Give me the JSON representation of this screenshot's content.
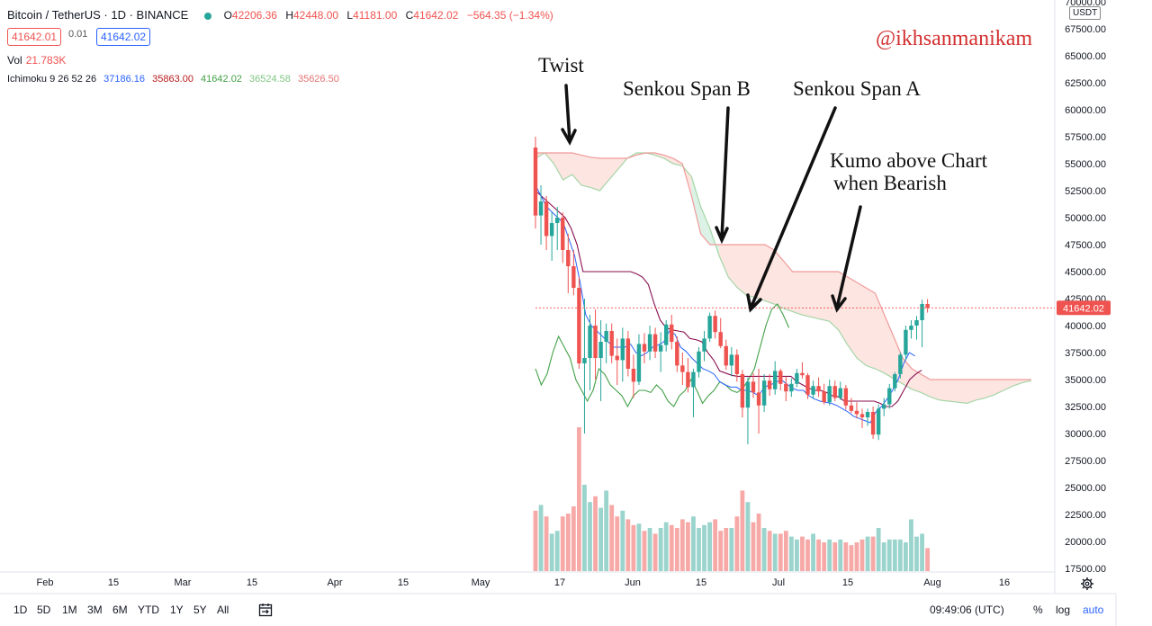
{
  "header": {
    "symbol": "Bitcoin / TetherUS · 1D · BINANCE",
    "ohlc": {
      "o_label": "O",
      "o": "42206.36",
      "h_label": "H",
      "h": "42448.00",
      "l_label": "L",
      "l": "41181.00",
      "c_label": "C",
      "c": "41642.02",
      "change": "−564.35 (−1.34%)"
    },
    "sell_price": "41642.01",
    "spread": "0.01",
    "buy_price": "41642.02",
    "volume_label": "Vol",
    "volume_value": "21.783K",
    "ichimoku_label": "Ichimoku 9 26 52 26",
    "ichimoku_values": [
      "37186.16",
      "35863.00",
      "41642.02",
      "36524.58",
      "35626.50"
    ]
  },
  "currency": "USDT",
  "credit": "@ikhsanmanikam",
  "annotations": {
    "twist": "Twist",
    "span_b": "Senkou Span B",
    "span_a": "Senkou Span A",
    "kumo_line1": "Kumo above Chart",
    "kumo_line2": "when Bearish"
  },
  "colors": {
    "up": "#26a69a",
    "down": "#ef5350",
    "tenkan": "#2962ff",
    "kijun": "#880e4f",
    "chikou": "#43a047",
    "span_a": "#a5d6a7",
    "span_b": "#ef9a9a",
    "cloud_bear": "#fde0dc",
    "cloud_bull": "#d7f0e2"
  },
  "bottom_bar": {
    "timeframes": [
      "1D",
      "5D",
      "1M",
      "3M",
      "6M",
      "YTD",
      "1Y",
      "5Y",
      "All"
    ],
    "time": "09:49:06 (UTC)",
    "percent": "%",
    "log": "log",
    "auto": "auto"
  },
  "chart_data": {
    "type": "candlestick",
    "last_price": 41642.02,
    "last_price_label": "41642.02",
    "y_ticks": [
      "70000.00",
      "67500.00",
      "65000.00",
      "62500.00",
      "60000.00",
      "57500.00",
      "55000.00",
      "52500.00",
      "50000.00",
      "47500.00",
      "45000.00",
      "42500.00",
      "40000.00",
      "37500.00",
      "35000.00",
      "32500.00",
      "30000.00",
      "27500.00",
      "25000.00",
      "22500.00",
      "20000.00",
      "17500.00"
    ],
    "ylim": [
      17000,
      70000
    ],
    "x_ticks": [
      "Feb",
      "15",
      "Mar",
      "15",
      "Apr",
      "15",
      "May",
      "17",
      "Jun",
      "15",
      "Jul",
      "15",
      "Aug",
      "16"
    ],
    "candles": [
      [
        56500,
        57500,
        49000,
        50200
      ],
      [
        50200,
        53000,
        47500,
        51500
      ],
      [
        51500,
        52000,
        47000,
        48300
      ],
      [
        48300,
        50500,
        46000,
        49500
      ],
      [
        49500,
        51000,
        47000,
        50000
      ],
      [
        50000,
        50500,
        45800,
        47000
      ],
      [
        47000,
        48500,
        43000,
        45500
      ],
      [
        45500,
        47000,
        42800,
        43500
      ],
      [
        43500,
        44500,
        36000,
        36500
      ],
      [
        36500,
        42500,
        30000,
        37000
      ],
      [
        37000,
        41000,
        34000,
        40000
      ],
      [
        40000,
        41500,
        35000,
        37000
      ],
      [
        37000,
        40500,
        33000,
        38500
      ],
      [
        38500,
        40200,
        36500,
        39500
      ],
      [
        39500,
        40200,
        36500,
        37200
      ],
      [
        37200,
        38800,
        34500,
        36800
      ],
      [
        36800,
        39800,
        34800,
        38800
      ],
      [
        38800,
        39500,
        35300,
        36000
      ],
      [
        36000,
        37300,
        33300,
        34800
      ],
      [
        34800,
        39200,
        34500,
        38300
      ],
      [
        38300,
        39300,
        36500,
        37600
      ],
      [
        37600,
        40000,
        36800,
        39200
      ],
      [
        39200,
        39800,
        37000,
        37600
      ],
      [
        37600,
        39400,
        35700,
        38200
      ],
      [
        38200,
        40500,
        37600,
        40100
      ],
      [
        40100,
        41000,
        37800,
        38500
      ],
      [
        38500,
        39000,
        35700,
        36300
      ],
      [
        36300,
        37500,
        34500,
        35700
      ],
      [
        35700,
        37000,
        33800,
        34300
      ],
      [
        34300,
        36000,
        31500,
        35700
      ],
      [
        35700,
        38000,
        35200,
        37600
      ],
      [
        37600,
        39500,
        36700,
        38800
      ],
      [
        38800,
        41200,
        38500,
        40900
      ],
      [
        40900,
        41400,
        38800,
        39400
      ],
      [
        39400,
        40700,
        37900,
        38100
      ],
      [
        38100,
        38700,
        35900,
        36300
      ],
      [
        36300,
        38000,
        35300,
        37300
      ],
      [
        37300,
        37800,
        34800,
        35500
      ],
      [
        35500,
        35900,
        31500,
        32400
      ],
      [
        32400,
        35200,
        29000,
        34800
      ],
      [
        34800,
        35600,
        33300,
        33800
      ],
      [
        33800,
        36000,
        30000,
        32600
      ],
      [
        32600,
        35500,
        32000,
        34900
      ],
      [
        34900,
        35500,
        33500,
        34100
      ],
      [
        34100,
        36700,
        33600,
        35800
      ],
      [
        35800,
        36000,
        34000,
        34600
      ],
      [
        34600,
        35300,
        33000,
        33900
      ],
      [
        33900,
        35100,
        33400,
        34600
      ],
      [
        34600,
        36000,
        34300,
        35600
      ],
      [
        35600,
        36600,
        35100,
        35400
      ],
      [
        35400,
        35600,
        33200,
        33600
      ],
      [
        33600,
        34900,
        33200,
        34400
      ],
      [
        34400,
        35200,
        33400,
        33900
      ],
      [
        33900,
        34600,
        32700,
        32900
      ],
      [
        32900,
        35000,
        32600,
        34400
      ],
      [
        34400,
        34900,
        33000,
        33300
      ],
      [
        33300,
        34800,
        33100,
        34200
      ],
      [
        34200,
        34500,
        32200,
        32600
      ],
      [
        32600,
        33300,
        31900,
        32100
      ],
      [
        32100,
        32900,
        31400,
        31800
      ],
      [
        31800,
        32300,
        30500,
        31500
      ],
      [
        31500,
        32300,
        30700,
        32000
      ],
      [
        32000,
        32500,
        29500,
        29900
      ],
      [
        29900,
        32700,
        29400,
        32300
      ],
      [
        32300,
        33300,
        31600,
        32700
      ],
      [
        32700,
        34600,
        32300,
        34200
      ],
      [
        34200,
        35700,
        33900,
        35500
      ],
      [
        35500,
        37500,
        35100,
        37300
      ],
      [
        37300,
        40000,
        36800,
        39600
      ],
      [
        39600,
        40500,
        38800,
        40000
      ],
      [
        40000,
        40900,
        38700,
        40500
      ],
      [
        40500,
        42400,
        38000,
        42000
      ],
      [
        42000,
        42450,
        41200,
        41642
      ]
    ],
    "volumes": [
      0.42,
      0.46,
      0.38,
      0.26,
      0.28,
      0.38,
      0.4,
      0.45,
      1.0,
      0.6,
      0.48,
      0.52,
      0.44,
      0.56,
      0.46,
      0.38,
      0.42,
      0.36,
      0.32,
      0.33,
      0.28,
      0.3,
      0.26,
      0.3,
      0.34,
      0.32,
      0.3,
      0.36,
      0.34,
      0.38,
      0.3,
      0.32,
      0.34,
      0.36,
      0.28,
      0.3,
      0.3,
      0.38,
      0.56,
      0.48,
      0.34,
      0.4,
      0.3,
      0.28,
      0.26,
      0.26,
      0.28,
      0.24,
      0.22,
      0.24,
      0.22,
      0.26,
      0.22,
      0.2,
      0.22,
      0.2,
      0.22,
      0.2,
      0.18,
      0.2,
      0.22,
      0.24,
      0.24,
      0.3,
      0.2,
      0.22,
      0.22,
      0.22,
      0.2,
      0.36,
      0.24,
      0.26,
      0.16
    ],
    "series_span_a": [
      55500,
      56000,
      55000,
      53500,
      54000,
      53000,
      52800,
      52500,
      53500,
      54500,
      55500,
      56000,
      56000,
      55800,
      55500,
      55000,
      54800,
      53800,
      51000,
      49000,
      46500,
      44500,
      43500,
      42800,
      42600,
      42300,
      42000,
      41600,
      41300,
      41000,
      40800,
      40600,
      40400,
      39600,
      38200,
      37000,
      36300,
      36000,
      35600,
      35100,
      34600,
      34100,
      33800,
      33400,
      33100,
      33000,
      32900,
      32800,
      33100,
      33300,
      33600,
      34000,
      34400,
      34700,
      34900
    ],
    "series_span_b": [
      56000,
      56000,
      56000,
      56000,
      56000,
      55800,
      55600,
      55500,
      55500,
      55500,
      55500,
      55800,
      56000,
      56000,
      55800,
      55500,
      55000,
      52000,
      48500,
      47500,
      47500,
      47500,
      47500,
      47500,
      47500,
      47500,
      47000,
      46000,
      45000,
      45000,
      45000,
      45000,
      45000,
      45000,
      44500,
      44000,
      43500,
      43000,
      41000,
      39000,
      37000,
      36000,
      35500,
      35000,
      35000,
      35000,
      35000,
      35000,
      35000,
      35000,
      35000,
      35000,
      35000,
      35000,
      35000
    ],
    "series_tenkan": [
      53000,
      52000,
      51000,
      50500,
      50000,
      49500,
      48000,
      46500,
      44000,
      41000,
      40000,
      39500,
      39000,
      38500,
      38000,
      38000,
      38000,
      38300,
      37500,
      37200,
      37500,
      38000,
      38200,
      38500,
      39500,
      39200,
      38000,
      37600,
      37000,
      36500,
      36000,
      35800,
      35500,
      34800,
      34500,
      34300,
      34300,
      34000,
      34000,
      33800,
      33500,
      34300,
      34500,
      34700,
      35000,
      34600,
      34200,
      34000,
      34000,
      33500,
      33200,
      33000,
      32900,
      32800,
      32600,
      32300,
      32000,
      31600,
      31400,
      31200,
      31000,
      32000,
      32500,
      33200,
      34000,
      35000,
      36500,
      37500,
      37186
    ],
    "series_kijun": [
      52500,
      52000,
      51500,
      51000,
      50500,
      50000,
      49000,
      47500,
      45000,
      45000,
      45000,
      45000,
      45000,
      45000,
      45000,
      45000,
      45000,
      44800,
      44500,
      43800,
      42000,
      40500,
      39800,
      39600,
      39500,
      39400,
      38800,
      38700,
      38500,
      37500,
      36800,
      35800,
      35600,
      35400,
      35300,
      35300,
      35300,
      35300,
      35300,
      35300,
      35300,
      35300,
      35300,
      35300,
      34800,
      34500,
      34200,
      34000,
      34000,
      33800,
      33500,
      33400,
      33000,
      33000,
      33000,
      33000,
      33000,
      33000,
      32800,
      32500,
      32500,
      33000,
      34000,
      35000,
      35500,
      35863
    ],
    "series_chikou": [
      36000,
      34500,
      35500,
      37500,
      39000,
      38000,
      37000,
      35000,
      34000,
      33000,
      34000,
      36000,
      35500,
      34500,
      34000,
      33500,
      32500,
      33500,
      34000,
      34000,
      33800,
      34500,
      34000,
      33000,
      32500,
      33500,
      34000,
      35000,
      34000,
      32800,
      33500,
      34000,
      34800,
      34500,
      34000,
      33800,
      34200,
      35000,
      36000,
      38000,
      40000,
      41500,
      42000,
      41000,
      39800
    ]
  }
}
